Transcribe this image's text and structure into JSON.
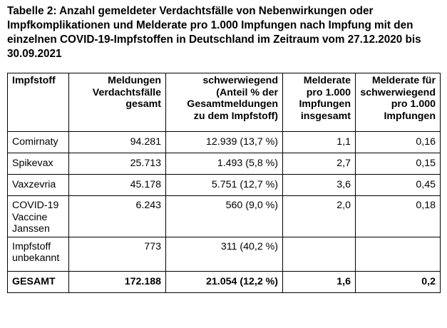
{
  "title": "Tabelle 2: Anzahl gemeldeter Verdachtsfälle von Nebenwirkungen oder Impfkomplikationen und Melderate pro 1.000 Impfungen nach Impfung mit den einzelnen COVID-19-Impfstoffen in Deutschland im Zeitraum vom 27.12.2020 bis 30.09.2021",
  "table": {
    "headers": {
      "impfstoff": [
        "Impfstoff"
      ],
      "meldungen": [
        "Meldungen",
        "Verdachtsfälle",
        "gesamt"
      ],
      "schwer": [
        "schwerwiegend",
        "(Anteil % der",
        "Gesamtmeldungen",
        "zu dem Impfstoff)"
      ],
      "melderate": [
        "Melderate",
        "pro 1.000",
        "Impfungen",
        "insgesamt"
      ],
      "melderate_schwer": [
        "Melderate für",
        "schwerwiegend",
        "pro 1.000",
        "Impfungen"
      ]
    },
    "rows": [
      {
        "name": [
          "Comirnaty"
        ],
        "meldungen": "94.281",
        "schwer": "12.939 (13,7 %)",
        "melderate": "1,1",
        "melderate_schwer": "0,16"
      },
      {
        "name": [
          "Spikevax"
        ],
        "meldungen": "25.713",
        "schwer": "1.493 (5,8 %)",
        "melderate": "2,7",
        "melderate_schwer": "0,15"
      },
      {
        "name": [
          "Vaxzevria"
        ],
        "meldungen": "45.178",
        "schwer": "5.751 (12,7 %)",
        "melderate": "3,6",
        "melderate_schwer": "0,45"
      },
      {
        "name": [
          "COVID-19",
          "Vaccine",
          "Janssen"
        ],
        "meldungen": "6.243",
        "schwer": "560 (9,0 %)",
        "melderate": "2,0",
        "melderate_schwer": "0,18"
      },
      {
        "name": [
          "Impfstoff",
          "unbekannt"
        ],
        "meldungen": "773",
        "schwer": "311 (40,2 %)",
        "melderate": "",
        "melderate_schwer": ""
      }
    ],
    "total": {
      "name": "GESAMT",
      "meldungen": "172.188",
      "schwer": "21.054 (12,2 %)",
      "melderate": "1,6",
      "melderate_schwer": "0,2"
    }
  }
}
